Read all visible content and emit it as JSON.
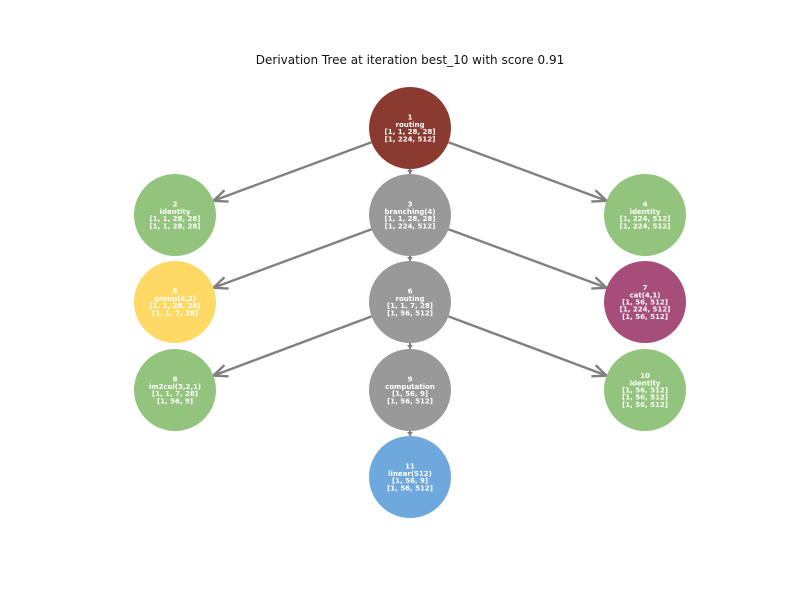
{
  "title": "Derivation Tree at iteration best_10 with score 0.91",
  "colors": {
    "edge": "#808080",
    "red": "#8b3a30",
    "green": "#93c47d",
    "gray": "#999999",
    "yellow": "#ffd966",
    "purple": "#a64d79",
    "blue": "#6fa8dc"
  },
  "nodes": [
    {
      "id": "1",
      "color": "red",
      "lines": [
        "1",
        "routing",
        "[1, 1, 28, 28]",
        "[1, 224, 512]"
      ]
    },
    {
      "id": "2",
      "color": "green",
      "lines": [
        "2",
        "identity",
        "[1, 1, 28, 28]",
        "[1, 1, 28, 28]"
      ]
    },
    {
      "id": "3",
      "color": "gray",
      "lines": [
        "3",
        "branching(4)",
        "[1, 1, 28, 28]",
        "[1, 224, 512]"
      ]
    },
    {
      "id": "4",
      "color": "green",
      "lines": [
        "4",
        "identity",
        "[1, 224, 512]",
        "[1, 224, 512]"
      ]
    },
    {
      "id": "5",
      "color": "yellow",
      "lines": [
        "5",
        "group(4,2)",
        "[1, 1, 28, 28]",
        "[1, 1, 7, 28]"
      ]
    },
    {
      "id": "6",
      "color": "gray",
      "lines": [
        "6",
        "routing",
        "[1, 1, 7, 28]",
        "[1, 56, 512]"
      ]
    },
    {
      "id": "7",
      "color": "purple",
      "lines": [
        "7",
        "cat(4,1)",
        "[1, 56, 512]",
        "[1, 224, 512]",
        "[1, 56, 512]"
      ]
    },
    {
      "id": "8",
      "color": "green",
      "lines": [
        "8",
        "im2col(3,2,1)",
        "[1, 1, 7, 28]",
        "[1, 56, 9]"
      ]
    },
    {
      "id": "9",
      "color": "gray",
      "lines": [
        "9",
        "computation",
        "[1, 56, 9]",
        "[1, 56, 512]"
      ]
    },
    {
      "id": "10",
      "color": "green",
      "lines": [
        "10",
        "identity",
        "[1, 56, 512]",
        "[1, 56, 512]",
        "[1, 56, 512]"
      ]
    },
    {
      "id": "11",
      "color": "blue",
      "lines": [
        "11",
        "linear(512)",
        "[1, 56, 9]",
        "[1, 56, 512]"
      ]
    }
  ],
  "edges": [
    {
      "from": "1",
      "to": "2"
    },
    {
      "from": "1",
      "to": "3"
    },
    {
      "from": "1",
      "to": "4"
    },
    {
      "from": "3",
      "to": "5"
    },
    {
      "from": "3",
      "to": "6"
    },
    {
      "from": "3",
      "to": "7"
    },
    {
      "from": "6",
      "to": "8"
    },
    {
      "from": "6",
      "to": "9"
    },
    {
      "from": "6",
      "to": "10"
    },
    {
      "from": "9",
      "to": "11"
    }
  ]
}
